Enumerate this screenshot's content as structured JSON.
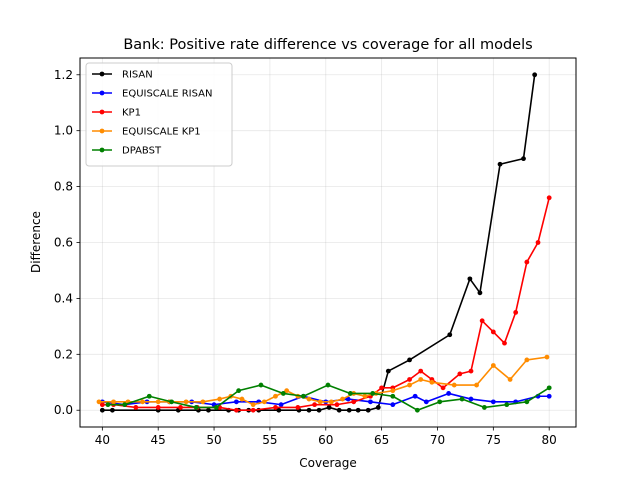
{
  "chart_data": {
    "type": "line",
    "title": "Bank: Positive rate difference vs coverage for all models",
    "xlabel": "Coverage",
    "ylabel": "Difference",
    "xlim": [
      38.0,
      82.4
    ],
    "ylim": [
      -0.06,
      1.26
    ],
    "xticks": [
      40,
      45,
      50,
      55,
      60,
      65,
      70,
      75,
      80
    ],
    "yticks": [
      0.0,
      0.2,
      0.4,
      0.6,
      0.8,
      1.0,
      1.2
    ],
    "xtick_labels": [
      "40",
      "45",
      "50",
      "55",
      "60",
      "65",
      "70",
      "75",
      "80"
    ],
    "ytick_labels": [
      "0.0",
      "0.2",
      "0.4",
      "0.6",
      "0.8",
      "1.0",
      "1.2"
    ],
    "grid": true,
    "legend_position": "top-left",
    "series": [
      {
        "name": "RISAN",
        "color": "#000000",
        "x": [
          40.0,
          40.9,
          45.0,
          46.8,
          48.6,
          49.5,
          51.3,
          52.2,
          53.1,
          54.0,
          55.8,
          57.6,
          58.5,
          59.4,
          60.3,
          61.2,
          62.1,
          62.9,
          63.8,
          64.7,
          65.6,
          67.5,
          71.1,
          72.9,
          73.8,
          75.6,
          77.7,
          78.7
        ],
        "y": [
          0.0,
          0.0,
          0.0,
          0.0,
          0.0,
          0.0,
          0.0,
          0.0,
          0.0,
          0.0,
          0.0,
          0.0,
          0.0,
          0.0,
          0.01,
          0.0,
          0.0,
          0.0,
          0.0,
          0.01,
          0.14,
          0.18,
          0.27,
          0.47,
          0.42,
          0.88,
          0.9,
          1.2
        ]
      },
      {
        "name": "EQUISCALE RISAN",
        "color": "#0000ff",
        "x": [
          40.0,
          42.0,
          44.0,
          46.0,
          48.0,
          50.0,
          52.0,
          54.0,
          56.0,
          58.0,
          60.0,
          62.0,
          64.0,
          66.0,
          68.0,
          69.0,
          71.0,
          73.0,
          75.0,
          77.0,
          79.0,
          80.0
        ],
        "y": [
          0.03,
          0.02,
          0.03,
          0.03,
          0.03,
          0.02,
          0.03,
          0.03,
          0.02,
          0.05,
          0.03,
          0.04,
          0.03,
          0.02,
          0.05,
          0.03,
          0.06,
          0.04,
          0.03,
          0.03,
          0.05,
          0.05
        ]
      },
      {
        "name": "KP1",
        "color": "#ff0000",
        "x": [
          40.0,
          41.0,
          43.0,
          45.0,
          47.0,
          48.5,
          50.5,
          52.0,
          53.5,
          55.5,
          57.5,
          59.0,
          61.0,
          62.5,
          64.0,
          65.0,
          66.0,
          67.5,
          68.5,
          69.5,
          70.5,
          72.0,
          73.0,
          74.0,
          75.0,
          76.0,
          77.0,
          78.0,
          79.0,
          80.0
        ],
        "y": [
          0.02,
          0.02,
          0.01,
          0.01,
          0.01,
          0.01,
          0.01,
          0.0,
          0.0,
          0.01,
          0.01,
          0.02,
          0.02,
          0.03,
          0.05,
          0.08,
          0.08,
          0.11,
          0.14,
          0.11,
          0.08,
          0.13,
          0.14,
          0.32,
          0.28,
          0.24,
          0.35,
          0.53,
          0.6,
          0.76
        ]
      },
      {
        "name": "EQUISCALE KP1",
        "color": "#ff8c00",
        "x": [
          39.7,
          41.0,
          42.3,
          43.6,
          45.0,
          46.0,
          47.5,
          49.0,
          50.5,
          51.5,
          52.5,
          53.5,
          54.5,
          55.5,
          56.5,
          57.5,
          58.5,
          59.5,
          60.5,
          61.5,
          62.5,
          63.5,
          64.5,
          66.0,
          67.5,
          68.5,
          69.5,
          71.5,
          73.5,
          75.0,
          76.5,
          78.0,
          79.8
        ],
        "y": [
          0.03,
          0.03,
          0.03,
          0.03,
          0.03,
          0.03,
          0.03,
          0.03,
          0.04,
          0.05,
          0.04,
          0.02,
          0.03,
          0.05,
          0.07,
          0.05,
          0.04,
          0.03,
          0.03,
          0.04,
          0.06,
          0.05,
          0.06,
          0.07,
          0.09,
          0.11,
          0.1,
          0.09,
          0.09,
          0.16,
          0.11,
          0.18,
          0.19
        ]
      },
      {
        "name": "DPABST",
        "color": "#008000",
        "x": [
          40.5,
          42.0,
          44.2,
          46.2,
          48.4,
          50.2,
          52.2,
          54.2,
          56.2,
          58.0,
          60.2,
          62.2,
          64.2,
          66.0,
          68.2,
          70.2,
          72.2,
          74.2,
          76.2,
          78.0,
          80.0
        ],
        "y": [
          0.02,
          0.02,
          0.05,
          0.03,
          0.01,
          0.01,
          0.07,
          0.09,
          0.06,
          0.05,
          0.09,
          0.06,
          0.06,
          0.05,
          0.0,
          0.03,
          0.04,
          0.01,
          0.02,
          0.03,
          0.08
        ]
      }
    ]
  }
}
